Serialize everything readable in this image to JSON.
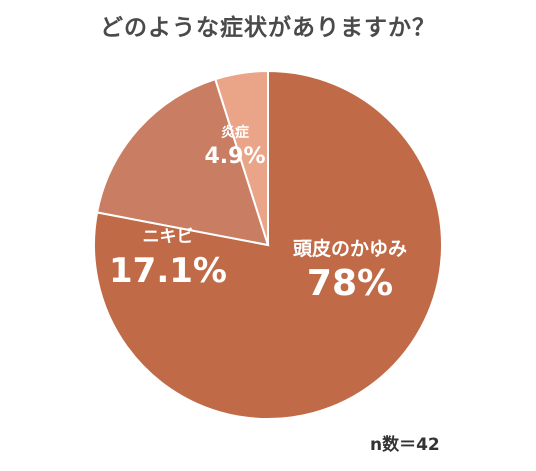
{
  "chart_data": {
    "type": "pie",
    "title": "どのような症状がありますか？",
    "slices": [
      {
        "label": "頭皮のかゆみ",
        "value": 78,
        "value_text": "78%",
        "color": "#c06a48"
      },
      {
        "label": "ニキビ",
        "value": 17.1,
        "value_text": "17.1%",
        "color": "#c97e63"
      },
      {
        "label": "炎症",
        "value": 4.9,
        "value_text": "4.9%",
        "color": "#eaa487"
      }
    ],
    "start_angle": "12 o'clock",
    "direction": "clockwise",
    "note": "n数＝42"
  }
}
